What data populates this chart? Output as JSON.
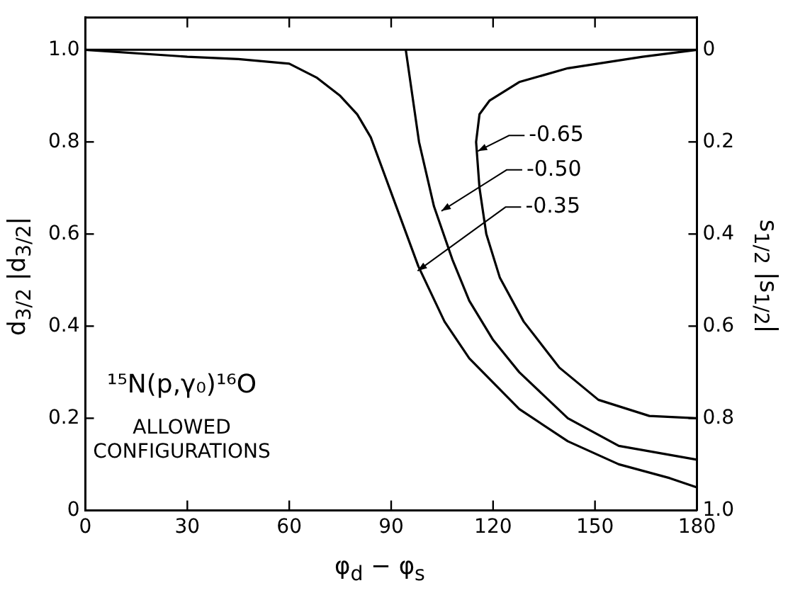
{
  "chart_data": {
    "type": "line",
    "xlabel": "φ$_{d}$ − φ$_{s}$",
    "ylabel": "d$_{3/2}$ |d$_{3/2}$|",
    "y2label": "s$_{1/2}$ |s$_{1/2}$|",
    "xlim": [
      0,
      180
    ],
    "xticks": [
      0,
      30,
      60,
      90,
      120,
      150,
      180
    ],
    "ylim": [
      0,
      1.07
    ],
    "yticks": [
      0,
      0.2,
      0.4,
      0.6,
      0.8,
      {
        "value": 1,
        "label": "1.0"
      }
    ],
    "y2lim": [
      1.0,
      -0.07
    ],
    "y2ticks": [
      0,
      0.2,
      0.4,
      0.6,
      0.8,
      {
        "value": 1,
        "label": "1.0"
      }
    ],
    "marker": "none",
    "line_style": "solid",
    "series": [
      {
        "color": "#000000",
        "x": [
          0,
          30,
          45,
          60,
          68,
          75,
          80,
          84,
          89.5,
          98,
          105.7,
          113,
          127.7,
          142,
          157,
          172,
          180
        ],
        "values": [
          1.0,
          0.985,
          0.98,
          0.97,
          0.94,
          0.9,
          0.86,
          0.81,
          0.7,
          0.53,
          0.41,
          0.33,
          0.22,
          0.15,
          0.1,
          0.07,
          0.05
        ]
      },
      {
        "color": "#000000",
        "x": [
          94.3,
          98.2,
          102.6,
          108,
          113,
          120,
          127.7,
          142,
          157,
          180
        ],
        "values": [
          1.0,
          0.8,
          0.66,
          0.545,
          0.455,
          0.37,
          0.3,
          0.2,
          0.14,
          0.11
        ]
      },
      {
        "color": "#000000",
        "x": [
          180,
          164,
          142,
          127.7,
          119,
          116,
          115,
          116,
          118,
          122,
          129,
          139.5,
          151,
          166,
          180
        ],
        "values": [
          1.0,
          0.985,
          0.96,
          0.93,
          0.89,
          0.86,
          0.8,
          0.7,
          0.6,
          0.505,
          0.41,
          0.31,
          0.24,
          0.205,
          0.2
        ]
      }
    ],
    "ref_lines": [
      {
        "axis": "y",
        "value": 1.0,
        "color": "#000000"
      }
    ],
    "annotations": [
      {
        "text": "-0.65",
        "x": 115.5,
        "y": 0.78
      },
      {
        "text": "-0.50",
        "x": 104.8,
        "y": 0.65
      },
      {
        "text": "-0.35",
        "x": 97.8,
        "y": 0.52
      },
      "¹⁵N(p,γ₀)¹⁶O",
      "ALLOWED CONFIGURATIONS"
    ]
  }
}
